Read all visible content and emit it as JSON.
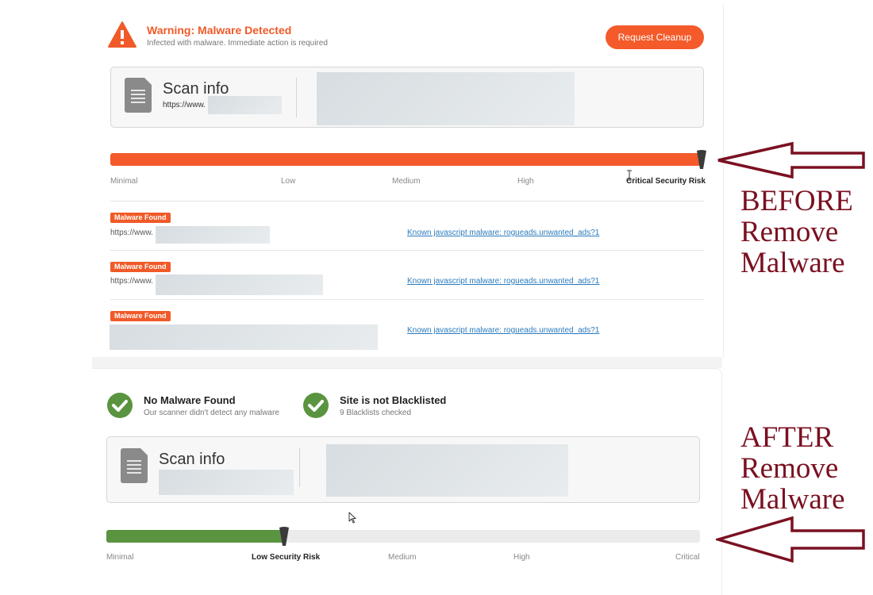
{
  "before": {
    "warning": {
      "title": "Warning: Malware Detected",
      "subtitle": "Infected with malware. Immediate action is required",
      "icon": "warning-triangle-icon"
    },
    "cleanup_button": "Request Cleanup",
    "scan_info": {
      "title": "Scan info",
      "url": "https://www.",
      "icon": "document-icon"
    },
    "risk": {
      "labels": [
        "Minimal",
        "Low",
        "Medium",
        "High",
        "Critical Security Risk"
      ],
      "active_label": "Critical Security Risk",
      "level_fraction": 1.0,
      "fill_color": "#f45a2a"
    },
    "malware_rows": [
      {
        "badge": "Malware Found",
        "url": "https://www.",
        "link": "Known javascript malware: rogueads.unwanted_ads?1"
      },
      {
        "badge": "Malware Found",
        "url": "https://www.",
        "link": "Known javascript malware: rogueads.unwanted_ads?1"
      },
      {
        "badge": "Malware Found",
        "url": "",
        "link": "Known javascript malware: rogueads.unwanted_ads?1"
      }
    ]
  },
  "after": {
    "statuses": [
      {
        "title": "No Malware Found",
        "subtitle": "Our scanner didn't detect any malware",
        "icon": "check-circle-icon"
      },
      {
        "title": "Site is not Blacklisted",
        "subtitle": "9 Blacklists checked",
        "icon": "check-circle-icon"
      }
    ],
    "scan_info": {
      "title": "Scan info",
      "icon": "document-icon"
    },
    "risk": {
      "labels": [
        "Minimal",
        "Low Security Risk",
        "Medium",
        "High",
        "Critical"
      ],
      "active_label": "Low Security Risk",
      "level_fraction": 0.3,
      "fill_color": "#5a9440"
    }
  },
  "annotations": {
    "before": [
      "BEFORE",
      "Remove",
      "Malware"
    ],
    "after": [
      "AFTER",
      "Remove",
      "Malware"
    ],
    "color": "#7a1020"
  },
  "colors": {
    "warning": "#f05a28",
    "success": "#5a9440",
    "link": "#2a7bbd"
  }
}
